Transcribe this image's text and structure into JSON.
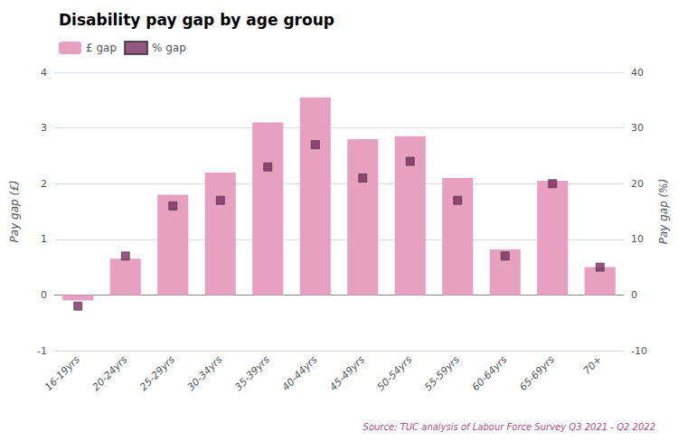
{
  "chart_data": {
    "type": "bar",
    "title": "Disability pay gap by age group",
    "subtitle": "Source: TUC analysis of Labour Force Survey Q3 2021 - Q2 2022",
    "categories": [
      "16-19yrs",
      "20-24yrs",
      "25-29yrs",
      "30-34yrs",
      "35-39yrs",
      "40-44yrs",
      "45-49yrs",
      "50-54yrs",
      "55-59yrs",
      "60-64yrs",
      "65-69yrs",
      "70+"
    ],
    "series": [
      {
        "name": "£ gap",
        "type": "bar",
        "color": "#e8a0c0",
        "values": [
          -0.1,
          0.65,
          1.8,
          2.2,
          3.1,
          3.55,
          2.8,
          2.85,
          2.1,
          0.82,
          2.05,
          0.5
        ]
      },
      {
        "name": "% gap",
        "type": "scatter",
        "marker": "square",
        "color": "#7b2d5e",
        "axis": "y2",
        "values": [
          -2,
          7,
          16,
          17,
          23,
          27,
          21,
          24,
          17,
          7,
          20,
          5
        ]
      }
    ],
    "ylabel": "Pay gap (£)",
    "y2label": "Pay gap (%)",
    "ylim": [
      -1,
      4
    ],
    "yticks": [
      -1,
      0,
      1,
      2,
      3,
      4
    ],
    "y2lim": [
      -10,
      40
    ],
    "y2ticks": [
      -10,
      0,
      10,
      20,
      30,
      40
    ],
    "grid": true,
    "legend": "top-left"
  }
}
